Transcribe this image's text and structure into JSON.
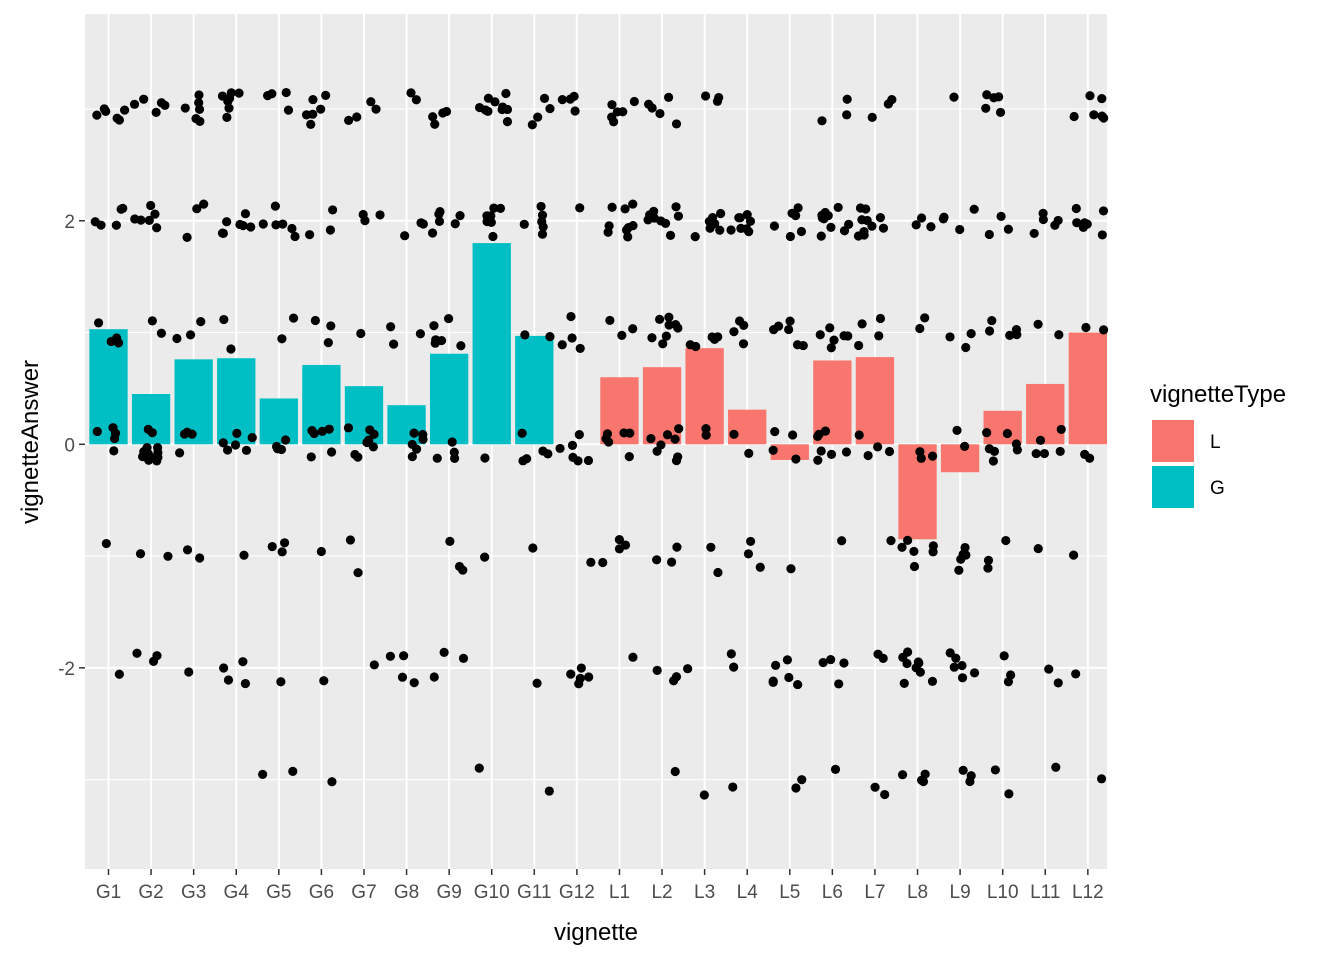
{
  "chart_data": {
    "type": "bar",
    "xlabel": "vignette",
    "ylabel": "vignetteAnswer",
    "ylim": [
      -3.8,
      3.85
    ],
    "y_ticks": [
      -2,
      0,
      2
    ],
    "y_tick_labels": [
      "-2",
      "0",
      "2"
    ],
    "grid": true,
    "legend_placement": "right",
    "categories": [
      "G1",
      "G2",
      "G3",
      "G4",
      "G5",
      "G6",
      "G7",
      "G8",
      "G9",
      "G10",
      "G11",
      "G12",
      "L1",
      "L2",
      "L3",
      "L4",
      "L5",
      "L6",
      "L7",
      "L8",
      "L9",
      "L10",
      "L11",
      "L12"
    ],
    "bar_values": [
      1.03,
      0.45,
      0.76,
      0.77,
      0.41,
      0.71,
      0.52,
      0.35,
      0.81,
      1.8,
      0.97,
      0.0,
      0.6,
      0.69,
      0.86,
      0.31,
      -0.14,
      0.75,
      0.78,
      -0.85,
      -0.25,
      0.3,
      0.54,
      1.0
    ],
    "bar_types": [
      "G",
      "G",
      "G",
      "G",
      "G",
      "G",
      "G",
      "G",
      "G",
      "G",
      "G",
      "G",
      "L",
      "L",
      "L",
      "L",
      "L",
      "L",
      "L",
      "L",
      "L",
      "L",
      "L",
      "L"
    ],
    "series": [
      {
        "name": "L",
        "color": "#F8766D"
      },
      {
        "name": "G",
        "color": "#00BFC4"
      }
    ],
    "legend_title": "vignetteType",
    "points": {
      "G1": {
        "3": 6,
        "2": 5,
        "1": 4,
        "0": 5,
        "-1": 1,
        "-2": 1,
        "-3": 0
      },
      "G2": {
        "3": 5,
        "2": 6,
        "1": 2,
        "0": 12,
        "-1": 2,
        "-2": 3,
        "-3": 0
      },
      "G3": {
        "3": 6,
        "2": 3,
        "1": 3,
        "0": 4,
        "-1": 2,
        "-2": 1,
        "-3": 0
      },
      "G4": {
        "3": 7,
        "2": 7,
        "1": 2,
        "0": 6,
        "-1": 1,
        "-2": 4,
        "-3": 0
      },
      "G5": {
        "3": 4,
        "2": 6,
        "1": 2,
        "0": 4,
        "-1": 3,
        "-2": 1,
        "-3": 2
      },
      "G6": {
        "3": 6,
        "2": 3,
        "1": 3,
        "0": 6,
        "-1": 1,
        "-2": 1,
        "-3": 1
      },
      "G7": {
        "3": 4,
        "2": 3,
        "1": 1,
        "0": 8,
        "-1": 2,
        "-2": 1,
        "-3": 0
      },
      "G8": {
        "3": 2,
        "2": 3,
        "1": 3,
        "0": 6,
        "-1": 0,
        "-2": 4,
        "-3": 0
      },
      "G9": {
        "3": 4,
        "2": 6,
        "1": 6,
        "0": 4,
        "-1": 3,
        "-2": 3,
        "-3": 0
      },
      "G10": {
        "3": 10,
        "2": 7,
        "1": 0,
        "0": 1,
        "-1": 1,
        "-2": 0,
        "-3": 1
      },
      "G11": {
        "3": 4,
        "2": 6,
        "1": 2,
        "0": 5,
        "-1": 1,
        "-2": 1,
        "-3": 1
      },
      "G12": {
        "3": 4,
        "2": 1,
        "1": 4,
        "0": 6,
        "-1": 1,
        "-2": 5,
        "-3": 0
      },
      "L1": {
        "3": 6,
        "2": 9,
        "1": 3,
        "0": 6,
        "-1": 4,
        "-2": 1,
        "-3": 0
      },
      "L2": {
        "3": 5,
        "2": 9,
        "1": 8,
        "0": 8,
        "-1": 3,
        "-2": 3,
        "-3": 1
      },
      "L3": {
        "3": 3,
        "2": 7,
        "1": 5,
        "0": 2,
        "-1": 2,
        "-2": 1,
        "-3": 1
      },
      "L4": {
        "3": 0,
        "2": 8,
        "1": 4,
        "0": 2,
        "-1": 3,
        "-2": 2,
        "-3": 1
      },
      "L5": {
        "3": 0,
        "2": 6,
        "1": 6,
        "0": 4,
        "-1": 1,
        "-2": 6,
        "-3": 2
      },
      "L6": {
        "3": 3,
        "2": 10,
        "1": 6,
        "0": 7,
        "-1": 1,
        "-2": 4,
        "-3": 1
      },
      "L7": {
        "3": 3,
        "2": 10,
        "1": 4,
        "0": 4,
        "-1": 1,
        "-2": 2,
        "-3": 2
      },
      "L8": {
        "3": 0,
        "2": 3,
        "1": 2,
        "0": 3,
        "-1": 6,
        "-2": 9,
        "-3": 4
      },
      "L9": {
        "3": 1,
        "2": 4,
        "1": 3,
        "0": 2,
        "-1": 5,
        "-2": 6,
        "-3": 3
      },
      "L10": {
        "3": 5,
        "2": 3,
        "1": 5,
        "0": 7,
        "-1": 3,
        "-2": 3,
        "-3": 2
      },
      "L11": {
        "3": 0,
        "2": 5,
        "1": 2,
        "0": 5,
        "-1": 1,
        "-2": 2,
        "-3": 1
      },
      "L12": {
        "3": 6,
        "2": 7,
        "1": 2,
        "0": 2,
        "-1": 1,
        "-2": 1,
        "-3": 1
      }
    }
  }
}
